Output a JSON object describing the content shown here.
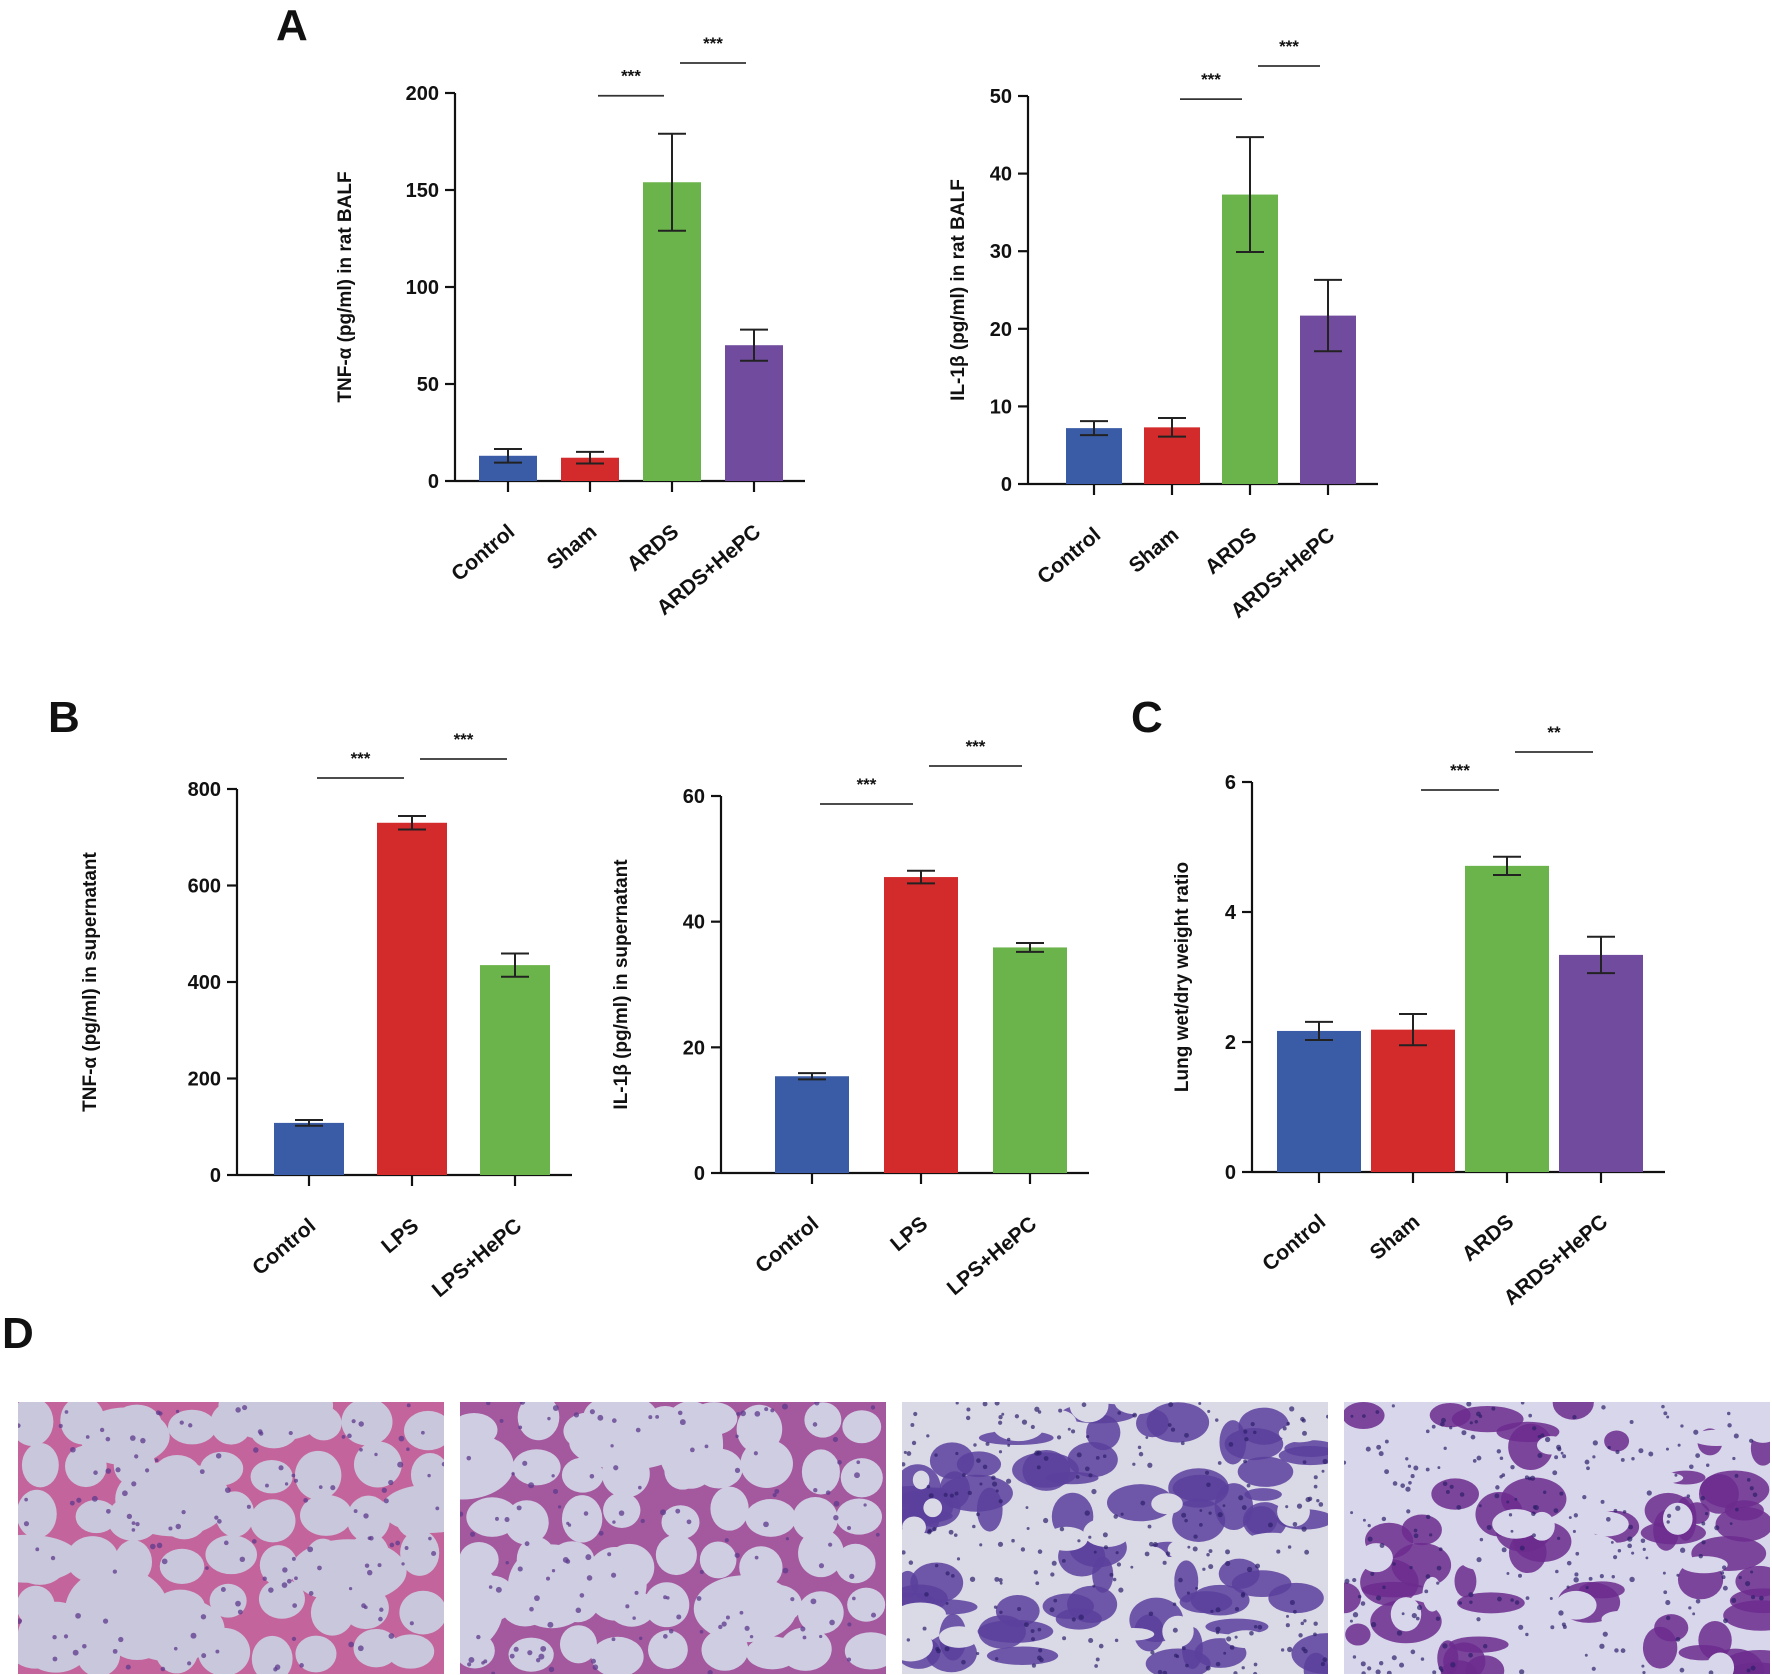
{
  "panel_labels": {
    "A": "A",
    "B": "B",
    "C": "C",
    "D": "D"
  },
  "colors": {
    "blue": "#3a5ba5",
    "red": "#d32b2b",
    "green": "#6bb44b",
    "purple": "#714c9e"
  },
  "chart_data": [
    {
      "type": "bar",
      "panel": "A",
      "categories": [
        "Control",
        "Sham",
        "ARDS",
        "ARDS+HePC"
      ],
      "values": [
        13,
        12,
        154,
        70
      ],
      "errors": [
        3.5,
        3,
        25,
        8
      ],
      "ylabel": "TNF-α (pg/ml) in rat BALF",
      "ylim": [
        0,
        200
      ],
      "yticks": [
        0,
        50,
        100,
        150,
        200
      ],
      "colors": [
        "blue",
        "red",
        "green",
        "purple"
      ],
      "significance": [
        {
          "from": 1,
          "to": 2,
          "label": "***"
        },
        {
          "from": 2,
          "to": 3,
          "label": "***"
        }
      ]
    },
    {
      "type": "bar",
      "panel": "A",
      "categories": [
        "Control",
        "Sham",
        "ARDS",
        "ARDS+HePC"
      ],
      "values": [
        7.2,
        7.3,
        37.3,
        21.7
      ],
      "errors": [
        0.9,
        1.2,
        7.4,
        4.6
      ],
      "ylabel": "IL-1β (pg/ml) in rat BALF",
      "ylim": [
        0,
        50
      ],
      "yticks": [
        0,
        10,
        20,
        30,
        40,
        50
      ],
      "colors": [
        "blue",
        "red",
        "green",
        "purple"
      ],
      "significance": [
        {
          "from": 1,
          "to": 2,
          "label": "***"
        },
        {
          "from": 2,
          "to": 3,
          "label": "***"
        }
      ]
    },
    {
      "type": "bar",
      "panel": "B",
      "categories": [
        "Control",
        "LPS",
        "LPS+HePC"
      ],
      "values": [
        108,
        730,
        435
      ],
      "errors": [
        6,
        14,
        24
      ],
      "ylabel": "TNF-α (pg/ml) in supernatant",
      "ylim": [
        0,
        800
      ],
      "yticks": [
        0,
        200,
        400,
        600,
        800
      ],
      "colors": [
        "blue",
        "red",
        "green"
      ],
      "significance": [
        {
          "from": 0,
          "to": 1,
          "label": "***"
        },
        {
          "from": 1,
          "to": 2,
          "label": "***"
        }
      ]
    },
    {
      "type": "bar",
      "panel": "B",
      "categories": [
        "Control",
        "LPS",
        "LPS+HePC"
      ],
      "values": [
        15.4,
        47.1,
        35.9
      ],
      "errors": [
        0.5,
        1,
        0.7
      ],
      "ylabel": "IL-1β (pg/ml) in supernatant",
      "ylim": [
        0,
        60
      ],
      "yticks": [
        0,
        20,
        40,
        60
      ],
      "colors": [
        "blue",
        "red",
        "green"
      ],
      "significance": [
        {
          "from": 0,
          "to": 1,
          "label": "***"
        },
        {
          "from": 1,
          "to": 2,
          "label": "***"
        }
      ]
    },
    {
      "type": "bar",
      "panel": "C",
      "categories": [
        "Control",
        "Sham",
        "ARDS",
        "ARDS+HePC"
      ],
      "values": [
        2.17,
        2.19,
        4.71,
        3.34
      ],
      "errors": [
        0.14,
        0.24,
        0.14,
        0.28
      ],
      "ylabel": "Lung wet/dry weight ratio",
      "ylim": [
        0,
        6
      ],
      "yticks": [
        0,
        2,
        4,
        6
      ],
      "colors": [
        "blue",
        "red",
        "green",
        "purple"
      ],
      "significance": [
        {
          "from": 1,
          "to": 2,
          "label": "***"
        },
        {
          "from": 2,
          "to": 3,
          "label": "**"
        }
      ]
    }
  ],
  "histology": [
    {
      "tissue": "normal",
      "background": "#c9c7dc",
      "wall": "#c4649c"
    },
    {
      "tissue": "normal",
      "background": "#cfcde2",
      "wall": "#a4589e"
    },
    {
      "tissue": "injured",
      "background": "#dad9e6",
      "wall": "#5a3f9c"
    },
    {
      "tissue": "moderate",
      "background": "#d8d6ea",
      "wall": "#6c2b8e"
    }
  ]
}
